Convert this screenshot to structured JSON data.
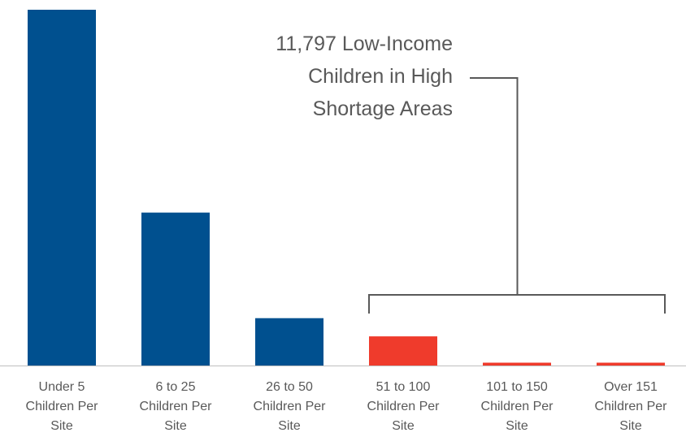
{
  "chart_data": {
    "type": "bar",
    "title": "",
    "xlabel": "",
    "ylabel": "",
    "categories": [
      [
        "Under 5",
        "Children Per",
        "Site"
      ],
      [
        "6 to 25",
        "Children Per",
        "Site"
      ],
      [
        "26 to 50",
        "Children Per",
        "Site"
      ],
      [
        "51 to 100",
        "Children Per",
        "Site"
      ],
      [
        "101 to 150",
        "Children Per",
        "Site"
      ],
      [
        "Over 151",
        "Children Per",
        "Site"
      ]
    ],
    "values": [
      100,
      43,
      13.3,
      8.2,
      0.8,
      0.8
    ],
    "ylim": [
      0,
      100
    ],
    "grid": false,
    "legend": "none",
    "bar_colors": [
      "#00508F",
      "#00508F",
      "#00508F",
      "#EF3B2C",
      "#EF3B2C",
      "#EF3B2C"
    ],
    "annotation": {
      "lines": [
        "11,797 Low-Income",
        "Children in High",
        "Shortage Areas"
      ],
      "bracket_covers": [
        3,
        5
      ]
    }
  },
  "colors": {
    "axis": "#BFBFBF",
    "bracket": "#595959",
    "text": "#595959"
  }
}
